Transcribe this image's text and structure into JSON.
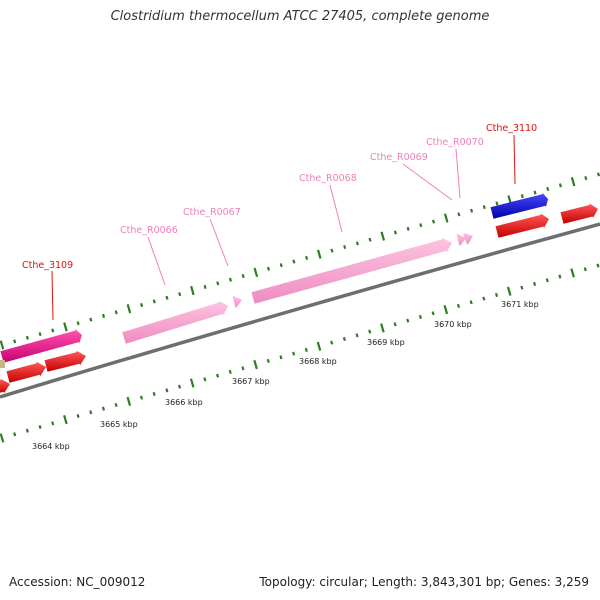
{
  "title": "Clostridium thermocellum ATCC 27405, complete genome",
  "accession_text": "Accession: NC_009012",
  "summary_text": "Topology: circular; Length: 3,843,301 bp; Genes: 3,259",
  "colors": {
    "backbone": "#808080",
    "tick": "#2e7d22",
    "cds_red": "#ee1111",
    "cds_blue": "#1a1adb",
    "magenta": "#e8148a",
    "rna_pink": "#f39ac8",
    "label_red": "#dd1111",
    "label_pink": "#f07fba"
  },
  "kbp_labels": [
    "3664 kbp",
    "3665 kbp",
    "3666 kbp",
    "3667 kbp",
    "3668 kbp",
    "3669 kbp",
    "3670 kbp",
    "3671 kbp"
  ],
  "gene_labels": [
    {
      "text": "Cthe_3109",
      "kind": "cds"
    },
    {
      "text": "Cthe_R0066",
      "kind": "rna"
    },
    {
      "text": "Cthe_R0067",
      "kind": "rna"
    },
    {
      "text": "Cthe_R0068",
      "kind": "rna"
    },
    {
      "text": "Cthe_R0069",
      "kind": "rna"
    },
    {
      "text": "Cthe_R0070",
      "kind": "rna"
    },
    {
      "text": "Cthe_3110",
      "kind": "cds"
    }
  ]
}
